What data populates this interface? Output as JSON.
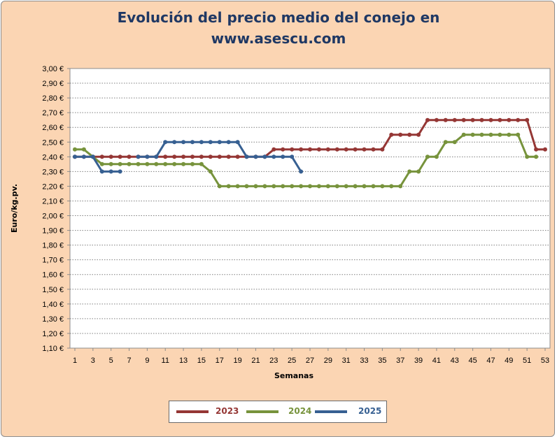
{
  "chart_data": {
    "type": "line",
    "title_line1": "Evolución del precio medio del conejo en",
    "title_line2": "www.asescu.com",
    "xlabel": "Semanas",
    "ylabel": "Euro/kg.pv.",
    "ylim": [
      1.1,
      3.0
    ],
    "y_ticks": [
      "1,10 €",
      "1,20 €",
      "1,30 €",
      "1,40 €",
      "1,50 €",
      "1,60 €",
      "1,70 €",
      "1,80 €",
      "1,90 €",
      "2,00 €",
      "2,10 €",
      "2,20 €",
      "2,30 €",
      "2,40 €",
      "2,50 €",
      "2,60 €",
      "2,70 €",
      "2,80 €",
      "2,90 €",
      "3,00 €"
    ],
    "x_ticks": [
      "1",
      "3",
      "5",
      "7",
      "9",
      "11",
      "13",
      "15",
      "17",
      "19",
      "21",
      "23",
      "25",
      "27",
      "29",
      "31",
      "33",
      "35",
      "37",
      "39",
      "41",
      "43",
      "45",
      "47",
      "49",
      "51",
      "53"
    ],
    "xlim": [
      1,
      53
    ],
    "grid": "horizontal-dotted",
    "legend_position": "bottom",
    "series": [
      {
        "name": "2023",
        "color": "#953735",
        "marker": "#953735",
        "x": [
          1,
          2,
          3,
          4,
          5,
          6,
          7,
          8,
          9,
          10,
          11,
          12,
          13,
          14,
          15,
          16,
          17,
          18,
          19,
          20,
          21,
          22,
          23,
          24,
          25,
          26,
          27,
          28,
          29,
          30,
          31,
          32,
          33,
          34,
          35,
          36,
          37,
          38,
          39,
          40,
          41,
          42,
          43,
          44,
          45,
          46,
          47,
          48,
          49,
          50,
          51,
          52,
          53
        ],
        "values": [
          2.4,
          2.4,
          2.4,
          2.4,
          2.4,
          2.4,
          2.4,
          2.4,
          2.4,
          2.4,
          2.4,
          2.4,
          2.4,
          2.4,
          2.4,
          2.4,
          2.4,
          2.4,
          2.4,
          2.4,
          2.4,
          2.4,
          2.45,
          2.45,
          2.45,
          2.45,
          2.45,
          2.45,
          2.45,
          2.45,
          2.45,
          2.45,
          2.45,
          2.45,
          2.45,
          2.55,
          2.55,
          2.55,
          2.55,
          2.65,
          2.65,
          2.65,
          2.65,
          2.65,
          2.65,
          2.65,
          2.65,
          2.65,
          2.65,
          2.65,
          2.65,
          2.45,
          2.45
        ]
      },
      {
        "name": "2024",
        "color": "#77933c",
        "marker": "#77933c",
        "x": [
          1,
          2,
          3,
          4,
          5,
          6,
          7,
          8,
          9,
          10,
          11,
          12,
          13,
          14,
          15,
          16,
          17,
          18,
          19,
          20,
          21,
          22,
          23,
          24,
          25,
          26,
          27,
          28,
          29,
          30,
          31,
          32,
          33,
          34,
          35,
          36,
          37,
          38,
          39,
          40,
          41,
          42,
          43,
          44,
          45,
          46,
          47,
          48,
          49,
          50,
          51,
          52
        ],
        "values": [
          2.45,
          2.45,
          2.4,
          2.35,
          2.35,
          2.35,
          2.35,
          2.35,
          2.35,
          2.35,
          2.35,
          2.35,
          2.35,
          2.35,
          2.35,
          2.3,
          2.2,
          2.2,
          2.2,
          2.2,
          2.2,
          2.2,
          2.2,
          2.2,
          2.2,
          2.2,
          2.2,
          2.2,
          2.2,
          2.2,
          2.2,
          2.2,
          2.2,
          2.2,
          2.2,
          2.2,
          2.2,
          2.3,
          2.3,
          2.4,
          2.4,
          2.5,
          2.5,
          2.55,
          2.55,
          2.55,
          2.55,
          2.55,
          2.55,
          2.55,
          2.4,
          2.4
        ]
      },
      {
        "name": "2025",
        "color": "#376092",
        "marker": "#376092",
        "x": [
          1,
          2,
          3,
          4,
          5,
          6,
          7,
          8,
          9,
          10,
          11,
          12,
          13,
          14,
          15,
          16,
          17,
          18,
          19,
          20,
          21,
          22,
          23,
          24,
          25,
          26
        ],
        "values": [
          2.4,
          2.4,
          2.4,
          2.3,
          2.3,
          2.3,
          null,
          2.4,
          2.4,
          2.4,
          2.5,
          2.5,
          2.5,
          2.5,
          2.5,
          2.5,
          2.5,
          2.5,
          2.5,
          2.4,
          2.4,
          2.4,
          2.4,
          2.4,
          2.4,
          2.3
        ]
      }
    ]
  }
}
